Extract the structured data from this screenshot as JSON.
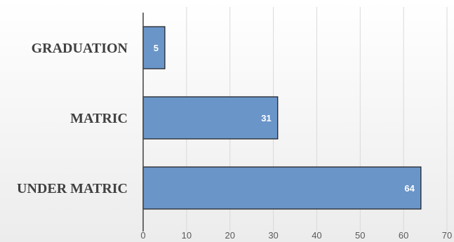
{
  "chart_data": {
    "type": "bar",
    "orientation": "horizontal",
    "categories": [
      "GRADUATION",
      "MATRIC",
      "UNDER MATRIC"
    ],
    "values": [
      5,
      31,
      64
    ],
    "data_labels": [
      "5",
      "31",
      "64"
    ],
    "x_ticks": [
      "0",
      "10",
      "20",
      "30",
      "40",
      "50",
      "60",
      "70"
    ],
    "xlim": [
      0,
      70
    ],
    "title": "",
    "xlabel": "",
    "ylabel": "",
    "grid": true,
    "legend": "none",
    "colors": {
      "bar_fill": "#6a95c9",
      "bar_stroke": "#1a1a1a",
      "grid": "#d9d9d9",
      "axis": "#404040"
    }
  }
}
